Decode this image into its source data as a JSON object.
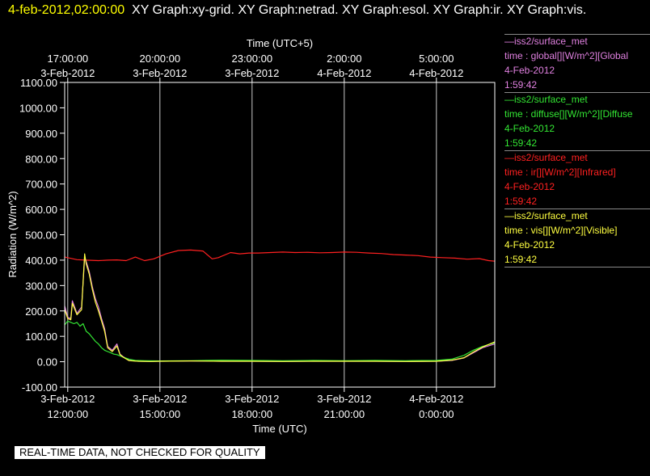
{
  "header": {
    "timestamp": "4-feb-2012,02:00:00",
    "graphs": "XY Graph:xy-grid.  XY Graph:netrad.  XY Graph:esol.  XY Graph:ir.  XY Graph:vis."
  },
  "notice": "REAL-TIME DATA, NOT CHECKED FOR QUALITY",
  "legend": [
    {
      "source": "—iss2/surface_met",
      "variable": "time : global[][W/m^2][Global",
      "date": "4-Feb-2012",
      "time": "1:59:42",
      "color": "#e080e0"
    },
    {
      "source": "—iss2/surface_met",
      "variable": "time : diffuse[][W/m^2][Diffuse",
      "date": "4-Feb-2012",
      "time": "1:59:42",
      "color": "#33e633"
    },
    {
      "source": "—iss2/surface_met",
      "variable": "time : ir[][W/m^2][Infrared]",
      "date": "4-Feb-2012",
      "time": "1:59:42",
      "color": "#ff2020"
    },
    {
      "source": "—iss2/surface_met",
      "variable": "time : vis[][W/m^2][Visible]",
      "date": "4-Feb-2012",
      "time": "1:59:42",
      "color": "#ffff40"
    }
  ],
  "chart_data": {
    "type": "line",
    "ylabel": "Radiation (W/m^2)",
    "xlabel": "Time (UTC)",
    "top_axis_label": "Time (UTC+5)",
    "ylim": [
      -100,
      1100
    ],
    "yticks": [
      "1100.00",
      "1000.00",
      "900.00",
      "800.00",
      "700.00",
      "600.00",
      "500.00",
      "400.00",
      "300.00",
      "200.00",
      "100.00",
      "0.00",
      "-100.00"
    ],
    "xlim_hours_utc": [
      11.9,
      25.9
    ],
    "grid": true,
    "bottom_ticks": [
      {
        "hour": 12,
        "date": "3-Feb-2012",
        "time": "12:00:00"
      },
      {
        "hour": 15,
        "date": "3-Feb-2012",
        "time": "15:00:00"
      },
      {
        "hour": 18,
        "date": "3-Feb-2012",
        "time": "18:00:00"
      },
      {
        "hour": 21,
        "date": "3-Feb-2012",
        "time": "21:00:00"
      },
      {
        "hour": 24,
        "date": "4-Feb-2012",
        "time": "0:00:00"
      }
    ],
    "top_ticks": [
      {
        "hour": 12,
        "time": "17:00:00",
        "date": "3-Feb-2012"
      },
      {
        "hour": 15,
        "time": "20:00:00",
        "date": "3-Feb-2012"
      },
      {
        "hour": 18,
        "time": "23:00:00",
        "date": "3-Feb-2012"
      },
      {
        "hour": 21,
        "time": "2:00:00",
        "date": "4-Feb-2012"
      },
      {
        "hour": 24,
        "time": "5:00:00",
        "date": "4-Feb-2012"
      }
    ],
    "series": [
      {
        "name": "ir",
        "color": "#ff2020",
        "x": [
          11.9,
          12.3,
          12.6,
          13.0,
          13.3,
          13.6,
          13.9,
          14.2,
          14.5,
          14.8,
          15.2,
          15.6,
          16.0,
          16.4,
          16.7,
          16.9,
          17.3,
          17.6,
          17.9,
          18.2,
          18.6,
          19.0,
          19.4,
          19.8,
          20.2,
          20.6,
          21.0,
          21.4,
          21.8,
          22.2,
          22.6,
          23.0,
          23.4,
          23.8,
          24.2,
          24.6,
          25.0,
          25.4,
          25.7,
          25.9
        ],
        "y": [
          412,
          402,
          400,
          398,
          400,
          401,
          398,
          412,
          398,
          405,
          425,
          438,
          440,
          436,
          405,
          410,
          430,
          425,
          428,
          428,
          430,
          432,
          430,
          431,
          429,
          430,
          432,
          431,
          428,
          426,
          422,
          420,
          418,
          412,
          410,
          408,
          404,
          406,
          398,
          396
        ]
      },
      {
        "name": "global",
        "color": "#e080e0",
        "x": [
          11.9,
          12.0,
          12.1,
          12.15,
          12.3,
          12.45,
          12.55,
          12.6,
          12.7,
          12.8,
          12.9,
          13.0,
          13.1,
          13.2,
          13.3,
          13.45,
          13.6,
          13.7,
          13.8,
          14.0,
          14.3,
          14.7,
          15.0,
          16.0,
          17.0,
          18.0,
          19.0,
          20.0,
          21.0,
          22.0,
          23.0,
          24.0,
          24.5,
          24.9,
          25.2,
          25.5,
          25.9
        ],
        "y": [
          220,
          175,
          170,
          240,
          190,
          215,
          410,
          395,
          355,
          295,
          248,
          215,
          170,
          130,
          60,
          45,
          70,
          30,
          20,
          5,
          2,
          1,
          2,
          3,
          2,
          2,
          1,
          2,
          2,
          2,
          1,
          2,
          5,
          15,
          35,
          55,
          70
        ]
      },
      {
        "name": "diffuse",
        "color": "#33e633",
        "x": [
          11.9,
          12.0,
          12.1,
          12.2,
          12.3,
          12.4,
          12.5,
          12.6,
          12.7,
          12.8,
          12.9,
          13.0,
          13.1,
          13.2,
          13.3,
          13.4,
          13.5,
          13.6,
          13.8,
          14.0,
          14.2,
          14.5,
          15.0,
          16.0,
          17.0,
          18.0,
          19.0,
          20.0,
          21.0,
          22.0,
          23.0,
          24.0,
          24.5,
          24.9,
          25.2,
          25.5,
          25.9
        ],
        "y": [
          145,
          160,
          155,
          150,
          155,
          140,
          150,
          120,
          110,
          95,
          80,
          70,
          55,
          45,
          40,
          35,
          30,
          28,
          18,
          10,
          5,
          4,
          3,
          4,
          6,
          5,
          4,
          5,
          4,
          5,
          4,
          5,
          10,
          25,
          45,
          60,
          75
        ]
      },
      {
        "name": "vis",
        "color": "#ffff40",
        "x": [
          11.9,
          12.0,
          12.1,
          12.15,
          12.3,
          12.45,
          12.55,
          12.6,
          12.7,
          12.8,
          12.9,
          13.0,
          13.1,
          13.2,
          13.3,
          13.45,
          13.6,
          13.7,
          13.8,
          14.0,
          14.3,
          14.7,
          15.0,
          16.0,
          17.0,
          18.0,
          19.0,
          20.0,
          21.0,
          22.0,
          23.0,
          24.0,
          24.5,
          24.9,
          25.2,
          25.5,
          25.9
        ],
        "y": [
          205,
          170,
          165,
          230,
          185,
          205,
          425,
          385,
          345,
          285,
          235,
          200,
          160,
          120,
          55,
          40,
          62,
          28,
          18,
          4,
          2,
          1,
          2,
          3,
          2,
          2,
          1,
          2,
          2,
          2,
          1,
          2,
          6,
          16,
          38,
          58,
          78
        ]
      }
    ]
  }
}
